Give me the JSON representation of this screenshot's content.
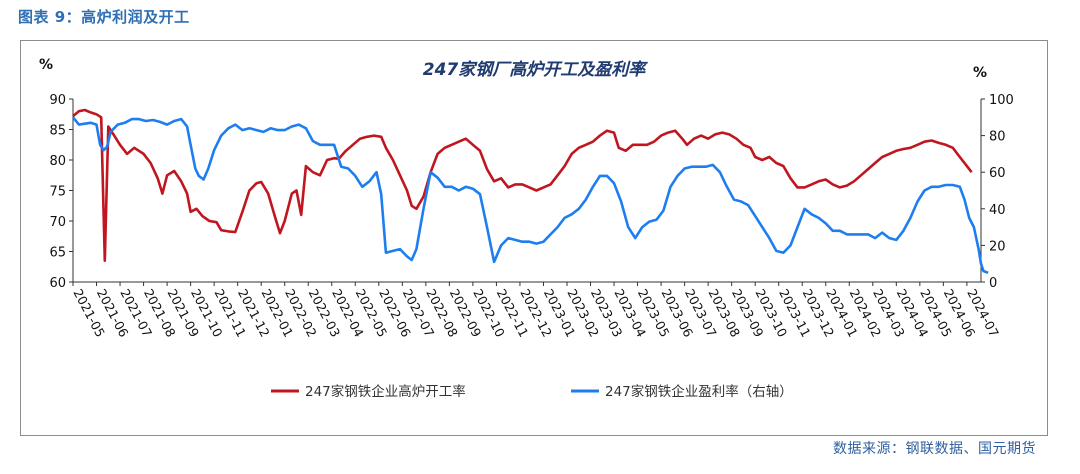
{
  "figure": {
    "caption": "图表 9：高炉利润及开工",
    "source": "数据来源：钢联数据、国元期货"
  },
  "chart_data": {
    "type": "line",
    "title": "247家钢厂高炉开工及盈利率",
    "ylabel_left": "%",
    "ylabel_right": "%",
    "ylim_left": [
      60,
      90
    ],
    "ylim_right": [
      0,
      100
    ],
    "yticks_left": [
      60,
      65,
      70,
      75,
      80,
      85,
      90
    ],
    "yticks_right": [
      0,
      20,
      40,
      60,
      80,
      100
    ],
    "xlim": [
      0,
      38.6
    ],
    "x_ticks": [
      "2021-05",
      "2021-06",
      "2021-07",
      "2021-08",
      "2021-09",
      "2021-10",
      "2021-11",
      "2021-12",
      "2022-01",
      "2022-02",
      "2022-03",
      "2022-04",
      "2022-05",
      "2022-06",
      "2022-07",
      "2022-08",
      "2022-09",
      "2022-10",
      "2022-11",
      "2022-12",
      "2023-01",
      "2023-02",
      "2023-03",
      "2023-04",
      "2023-05",
      "2023-06",
      "2023-07",
      "2023-08",
      "2023-09",
      "2023-10",
      "2023-11",
      "2023-12",
      "2024-01",
      "2024-02",
      "2024-03",
      "2024-04",
      "2024-05",
      "2024-06",
      "2024-07"
    ],
    "grid": false,
    "legend_position": "bottom",
    "series": [
      {
        "name": "247家钢铁企业高炉开工率",
        "axis": "left",
        "color": "#c0161f",
        "points": [
          [
            0,
            87.2
          ],
          [
            0.25,
            88.0
          ],
          [
            0.5,
            88.2
          ],
          [
            0.75,
            87.8
          ],
          [
            1.0,
            87.5
          ],
          [
            1.2,
            87.0
          ],
          [
            1.35,
            63.5
          ],
          [
            1.5,
            85.5
          ],
          [
            1.75,
            84.0
          ],
          [
            2.0,
            82.5
          ],
          [
            2.3,
            81.0
          ],
          [
            2.6,
            82.0
          ],
          [
            3.0,
            81.0
          ],
          [
            3.3,
            79.5
          ],
          [
            3.6,
            77.0
          ],
          [
            3.8,
            74.5
          ],
          [
            4.0,
            77.5
          ],
          [
            4.3,
            78.2
          ],
          [
            4.6,
            76.5
          ],
          [
            4.85,
            74.5
          ],
          [
            5.0,
            71.5
          ],
          [
            5.25,
            72.0
          ],
          [
            5.5,
            70.8
          ],
          [
            5.8,
            70.0
          ],
          [
            6.1,
            69.8
          ],
          [
            6.3,
            68.5
          ],
          [
            6.6,
            68.3
          ],
          [
            6.9,
            68.2
          ],
          [
            7.2,
            71.5
          ],
          [
            7.5,
            75.0
          ],
          [
            7.8,
            76.2
          ],
          [
            8.0,
            76.4
          ],
          [
            8.3,
            74.5
          ],
          [
            8.6,
            70.5
          ],
          [
            8.8,
            68.0
          ],
          [
            9.0,
            70.0
          ],
          [
            9.3,
            74.5
          ],
          [
            9.5,
            75.0
          ],
          [
            9.7,
            71.0
          ],
          [
            9.9,
            79.0
          ],
          [
            10.2,
            78.0
          ],
          [
            10.5,
            77.5
          ],
          [
            10.8,
            80.0
          ],
          [
            11.1,
            80.3
          ],
          [
            11.3,
            80.2
          ],
          [
            11.6,
            81.5
          ],
          [
            11.9,
            82.5
          ],
          [
            12.2,
            83.5
          ],
          [
            12.5,
            83.8
          ],
          [
            12.8,
            84.0
          ],
          [
            13.1,
            83.8
          ],
          [
            13.3,
            82.0
          ],
          [
            13.6,
            80.0
          ],
          [
            13.9,
            77.5
          ],
          [
            14.2,
            75.0
          ],
          [
            14.4,
            72.5
          ],
          [
            14.6,
            72.0
          ],
          [
            14.9,
            74.0
          ],
          [
            15.2,
            78.0
          ],
          [
            15.5,
            81.0
          ],
          [
            15.8,
            82.0
          ],
          [
            16.1,
            82.5
          ],
          [
            16.4,
            83.0
          ],
          [
            16.7,
            83.5
          ],
          [
            17.0,
            82.5
          ],
          [
            17.3,
            81.5
          ],
          [
            17.6,
            78.5
          ],
          [
            17.9,
            76.5
          ],
          [
            18.2,
            77.0
          ],
          [
            18.5,
            75.5
          ],
          [
            18.8,
            76.0
          ],
          [
            19.1,
            76.0
          ],
          [
            19.4,
            75.5
          ],
          [
            19.7,
            75.0
          ],
          [
            20.0,
            75.5
          ],
          [
            20.3,
            76.0
          ],
          [
            20.6,
            77.5
          ],
          [
            20.9,
            79.0
          ],
          [
            21.2,
            81.0
          ],
          [
            21.5,
            82.0
          ],
          [
            21.8,
            82.5
          ],
          [
            22.1,
            83.0
          ],
          [
            22.4,
            84.0
          ],
          [
            22.7,
            84.8
          ],
          [
            23.0,
            84.5
          ],
          [
            23.2,
            82.0
          ],
          [
            23.5,
            81.5
          ],
          [
            23.8,
            82.5
          ],
          [
            24.1,
            82.5
          ],
          [
            24.4,
            82.5
          ],
          [
            24.7,
            83.0
          ],
          [
            25.0,
            84.0
          ],
          [
            25.3,
            84.5
          ],
          [
            25.6,
            84.8
          ],
          [
            25.9,
            83.5
          ],
          [
            26.1,
            82.5
          ],
          [
            26.4,
            83.5
          ],
          [
            26.7,
            84.0
          ],
          [
            27.0,
            83.5
          ],
          [
            27.3,
            84.2
          ],
          [
            27.6,
            84.5
          ],
          [
            27.9,
            84.2
          ],
          [
            28.2,
            83.5
          ],
          [
            28.5,
            82.5
          ],
          [
            28.8,
            82.0
          ],
          [
            29.0,
            80.5
          ],
          [
            29.3,
            80.0
          ],
          [
            29.6,
            80.5
          ],
          [
            29.9,
            79.5
          ],
          [
            30.2,
            79.0
          ],
          [
            30.5,
            77.0
          ],
          [
            30.8,
            75.5
          ],
          [
            31.1,
            75.5
          ],
          [
            31.4,
            76.0
          ],
          [
            31.7,
            76.5
          ],
          [
            32.0,
            76.8
          ],
          [
            32.3,
            76.0
          ],
          [
            32.6,
            75.5
          ],
          [
            32.9,
            75.8
          ],
          [
            33.2,
            76.5
          ],
          [
            33.5,
            77.5
          ],
          [
            33.8,
            78.5
          ],
          [
            34.1,
            79.5
          ],
          [
            34.4,
            80.5
          ],
          [
            34.7,
            81.0
          ],
          [
            35.0,
            81.5
          ],
          [
            35.3,
            81.8
          ],
          [
            35.6,
            82.0
          ],
          [
            35.9,
            82.5
          ],
          [
            36.2,
            83.0
          ],
          [
            36.5,
            83.2
          ],
          [
            36.8,
            82.8
          ],
          [
            37.1,
            82.5
          ],
          [
            37.4,
            82.0
          ],
          [
            37.7,
            80.5
          ],
          [
            38.0,
            79.0
          ],
          [
            38.2,
            78.0
          ]
        ]
      },
      {
        "name": "247家钢铁企业盈利率（右轴）",
        "axis": "right",
        "color": "#1e7ef0",
        "points": [
          [
            0,
            90
          ],
          [
            0.25,
            86
          ],
          [
            0.5,
            86.5
          ],
          [
            0.75,
            87
          ],
          [
            1.0,
            86
          ],
          [
            1.15,
            75
          ],
          [
            1.3,
            72
          ],
          [
            1.45,
            74
          ],
          [
            1.6,
            82
          ],
          [
            1.9,
            86
          ],
          [
            2.2,
            87
          ],
          [
            2.5,
            89
          ],
          [
            2.8,
            89
          ],
          [
            3.1,
            88
          ],
          [
            3.4,
            88.5
          ],
          [
            3.7,
            87.5
          ],
          [
            4.0,
            86
          ],
          [
            4.3,
            88
          ],
          [
            4.6,
            89
          ],
          [
            4.85,
            85
          ],
          [
            5.0,
            75
          ],
          [
            5.2,
            62
          ],
          [
            5.35,
            58
          ],
          [
            5.55,
            56
          ],
          [
            5.75,
            62
          ],
          [
            6.0,
            72
          ],
          [
            6.3,
            80
          ],
          [
            6.6,
            84
          ],
          [
            6.9,
            86
          ],
          [
            7.2,
            83
          ],
          [
            7.5,
            84
          ],
          [
            7.8,
            83
          ],
          [
            8.1,
            82
          ],
          [
            8.4,
            84
          ],
          [
            8.7,
            83
          ],
          [
            9.0,
            83
          ],
          [
            9.3,
            85
          ],
          [
            9.6,
            86
          ],
          [
            9.9,
            84
          ],
          [
            10.2,
            77
          ],
          [
            10.5,
            75
          ],
          [
            10.8,
            75
          ],
          [
            11.1,
            75
          ],
          [
            11.4,
            63
          ],
          [
            11.7,
            62
          ],
          [
            12.0,
            58
          ],
          [
            12.3,
            52
          ],
          [
            12.6,
            55
          ],
          [
            12.9,
            60
          ],
          [
            13.1,
            48
          ],
          [
            13.3,
            16
          ],
          [
            13.6,
            17
          ],
          [
            13.9,
            18
          ],
          [
            14.2,
            14
          ],
          [
            14.4,
            12
          ],
          [
            14.6,
            18
          ],
          [
            14.9,
            40
          ],
          [
            15.2,
            60
          ],
          [
            15.5,
            57
          ],
          [
            15.8,
            52
          ],
          [
            16.1,
            52
          ],
          [
            16.4,
            50
          ],
          [
            16.7,
            52
          ],
          [
            17.0,
            51
          ],
          [
            17.3,
            48
          ],
          [
            17.6,
            30
          ],
          [
            17.9,
            11
          ],
          [
            18.2,
            20
          ],
          [
            18.5,
            24
          ],
          [
            18.8,
            23
          ],
          [
            19.1,
            22
          ],
          [
            19.4,
            22
          ],
          [
            19.7,
            21
          ],
          [
            20.0,
            22
          ],
          [
            20.3,
            26
          ],
          [
            20.6,
            30
          ],
          [
            20.9,
            35
          ],
          [
            21.2,
            37
          ],
          [
            21.5,
            40
          ],
          [
            21.8,
            45
          ],
          [
            22.1,
            52
          ],
          [
            22.4,
            58
          ],
          [
            22.7,
            58
          ],
          [
            23.0,
            54
          ],
          [
            23.3,
            44
          ],
          [
            23.6,
            30
          ],
          [
            23.9,
            24
          ],
          [
            24.2,
            30
          ],
          [
            24.5,
            33
          ],
          [
            24.8,
            34
          ],
          [
            25.1,
            39
          ],
          [
            25.4,
            52
          ],
          [
            25.7,
            58
          ],
          [
            26.0,
            62
          ],
          [
            26.3,
            63
          ],
          [
            26.6,
            63
          ],
          [
            26.9,
            63
          ],
          [
            27.2,
            64
          ],
          [
            27.5,
            60
          ],
          [
            27.8,
            52
          ],
          [
            28.1,
            45
          ],
          [
            28.4,
            44
          ],
          [
            28.7,
            42
          ],
          [
            29.0,
            36
          ],
          [
            29.3,
            30
          ],
          [
            29.6,
            24
          ],
          [
            29.9,
            17
          ],
          [
            30.2,
            16
          ],
          [
            30.5,
            20
          ],
          [
            30.8,
            30
          ],
          [
            31.1,
            40
          ],
          [
            31.4,
            37
          ],
          [
            31.7,
            35
          ],
          [
            32.0,
            32
          ],
          [
            32.3,
            28
          ],
          [
            32.6,
            28
          ],
          [
            32.9,
            26
          ],
          [
            33.2,
            26
          ],
          [
            33.5,
            26
          ],
          [
            33.8,
            26
          ],
          [
            34.1,
            24
          ],
          [
            34.4,
            27
          ],
          [
            34.7,
            24
          ],
          [
            35.0,
            23
          ],
          [
            35.3,
            28
          ],
          [
            35.6,
            35
          ],
          [
            35.9,
            44
          ],
          [
            36.2,
            50
          ],
          [
            36.5,
            52
          ],
          [
            36.8,
            52
          ],
          [
            37.1,
            53
          ],
          [
            37.4,
            53
          ],
          [
            37.7,
            52
          ],
          [
            37.9,
            45
          ],
          [
            38.1,
            35
          ],
          [
            38.3,
            30
          ],
          [
            38.5,
            18
          ],
          [
            38.6,
            10
          ],
          [
            38.7,
            6
          ],
          [
            38.9,
            5
          ]
        ]
      }
    ]
  }
}
